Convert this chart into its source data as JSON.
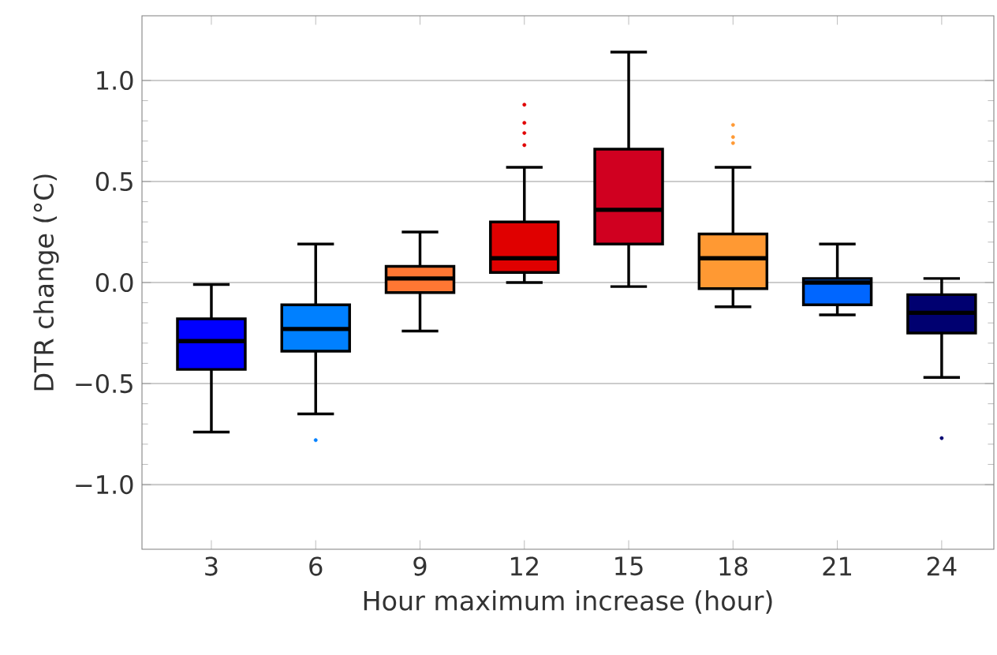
{
  "chart_data": {
    "type": "box",
    "xlabel": "Hour maximum increase (hour)",
    "ylabel": "DTR change (°C)",
    "categories": [
      "3",
      "6",
      "9",
      "12",
      "15",
      "18",
      "21",
      "24"
    ],
    "colors": [
      "#0000ff",
      "#0080ff",
      "#ff7733",
      "#e00000",
      "#d00020",
      "#ff9933",
      "#0066ff",
      "#000070"
    ],
    "boxes": [
      {
        "low": -0.74,
        "q1": -0.43,
        "median": -0.29,
        "q3": -0.18,
        "high": -0.01
      },
      {
        "low": -0.65,
        "q1": -0.34,
        "median": -0.23,
        "q3": -0.11,
        "high": 0.19,
        "outliers": [
          -0.78
        ]
      },
      {
        "low": -0.24,
        "q1": -0.05,
        "median": 0.02,
        "q3": 0.08,
        "high": 0.25
      },
      {
        "low": 0.0,
        "q1": 0.05,
        "median": 0.12,
        "q3": 0.3,
        "high": 0.57,
        "outliers": [
          0.68,
          0.74,
          0.79,
          0.88
        ]
      },
      {
        "low": -0.02,
        "q1": 0.19,
        "median": 0.36,
        "q3": 0.66,
        "high": 1.14
      },
      {
        "low": -0.12,
        "q1": -0.03,
        "median": 0.12,
        "q3": 0.24,
        "high": 0.57,
        "outliers": [
          0.69,
          0.72,
          0.78
        ]
      },
      {
        "low": -0.16,
        "q1": -0.11,
        "median": 0.0,
        "q3": 0.02,
        "high": 0.19
      },
      {
        "low": -0.47,
        "q1": -0.25,
        "median": -0.15,
        "q3": -0.06,
        "high": 0.02,
        "outliers": [
          -0.77
        ]
      }
    ],
    "ylim": [
      -1.32,
      1.32
    ],
    "yticks": [
      {
        "value": -1,
        "label": "−1.0"
      },
      {
        "value": -0.5,
        "label": "−0.5"
      },
      {
        "value": 0,
        "label": "0.0"
      },
      {
        "value": 0.5,
        "label": "0.5"
      },
      {
        "value": 1,
        "label": "1.0"
      }
    ],
    "grid": "y"
  }
}
